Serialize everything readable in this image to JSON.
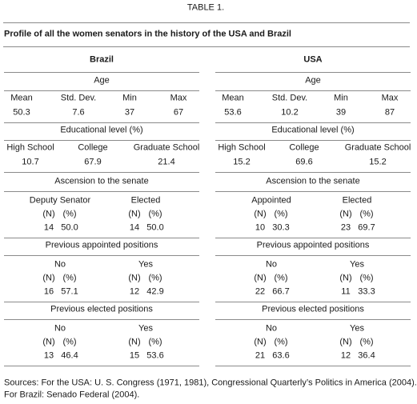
{
  "title": "TABLE 1.",
  "caption": "Profile of  all the women senators in the history of the USA and Brazil",
  "panels": [
    {
      "country": "Brazil",
      "age": {
        "heading": "Age",
        "columns": [
          "Mean",
          "Std. Dev.",
          "Min",
          "Max"
        ],
        "values": [
          "50.3",
          "7.6",
          "37",
          "67"
        ]
      },
      "education": {
        "heading": "Educational level (%)",
        "columns": [
          "High School",
          "College",
          "Graduate School"
        ],
        "values": [
          "10.7",
          "67.9",
          "21.4"
        ]
      },
      "ascension": {
        "heading": "Ascension to the senate",
        "groups": [
          {
            "label": "Deputy Senator",
            "columns": [
              "(N)",
              "(%)"
            ],
            "values": [
              "14",
              "50.0"
            ]
          },
          {
            "label": "Elected",
            "columns": [
              "(N)",
              "(%)"
            ],
            "values": [
              "14",
              "50.0"
            ]
          }
        ]
      },
      "appointed": {
        "heading": "Previous appointed positions",
        "groups": [
          {
            "label": "No",
            "columns": [
              "(N)",
              "(%)"
            ],
            "values": [
              "16",
              "57.1"
            ]
          },
          {
            "label": "Yes",
            "columns": [
              "(N)",
              "(%)"
            ],
            "values": [
              "12",
              "42.9"
            ]
          }
        ]
      },
      "elected": {
        "heading": "Previous elected positions",
        "groups": [
          {
            "label": "No",
            "columns": [
              "(N)",
              "(%)"
            ],
            "values": [
              "13",
              "46.4"
            ]
          },
          {
            "label": "Yes",
            "columns": [
              "(N)",
              "(%)"
            ],
            "values": [
              "15",
              "53.6"
            ]
          }
        ]
      }
    },
    {
      "country": "USA",
      "age": {
        "heading": "Age",
        "columns": [
          "Mean",
          "Std. Dev.",
          "Min",
          "Max"
        ],
        "values": [
          "53.6",
          "10.2",
          "39",
          "87"
        ]
      },
      "education": {
        "heading": "Educational level (%)",
        "columns": [
          "High School",
          "College",
          "Graduate School"
        ],
        "values": [
          "15.2",
          "69.6",
          "15.2"
        ]
      },
      "ascension": {
        "heading": "Ascension to the senate",
        "groups": [
          {
            "label": "Appointed",
            "columns": [
              "(N)",
              "(%)"
            ],
            "values": [
              "10",
              "30.3"
            ]
          },
          {
            "label": "Elected",
            "columns": [
              "(N)",
              "(%)"
            ],
            "values": [
              "23",
              "69.7"
            ]
          }
        ]
      },
      "appointed": {
        "heading": "Previous appointed positions",
        "groups": [
          {
            "label": "No",
            "columns": [
              "(N)",
              "(%)"
            ],
            "values": [
              "22",
              "66.7"
            ]
          },
          {
            "label": "Yes",
            "columns": [
              "(N)",
              "(%)"
            ],
            "values": [
              "11",
              "33.3"
            ]
          }
        ]
      },
      "elected": {
        "heading": "Previous elected positions",
        "groups": [
          {
            "label": "No",
            "columns": [
              "(N)",
              "(%)"
            ],
            "values": [
              "21",
              "63.6"
            ]
          },
          {
            "label": "Yes",
            "columns": [
              "(N)",
              "(%)"
            ],
            "values": [
              "12",
              "36.4"
            ]
          }
        ]
      }
    }
  ],
  "sources": [
    "Sources: For the USA: U. S. Congress (1971, 1981), Congressional Quarterly’s Politics in America (2004).",
    "For Brazil: Senado Federal (2004)."
  ]
}
